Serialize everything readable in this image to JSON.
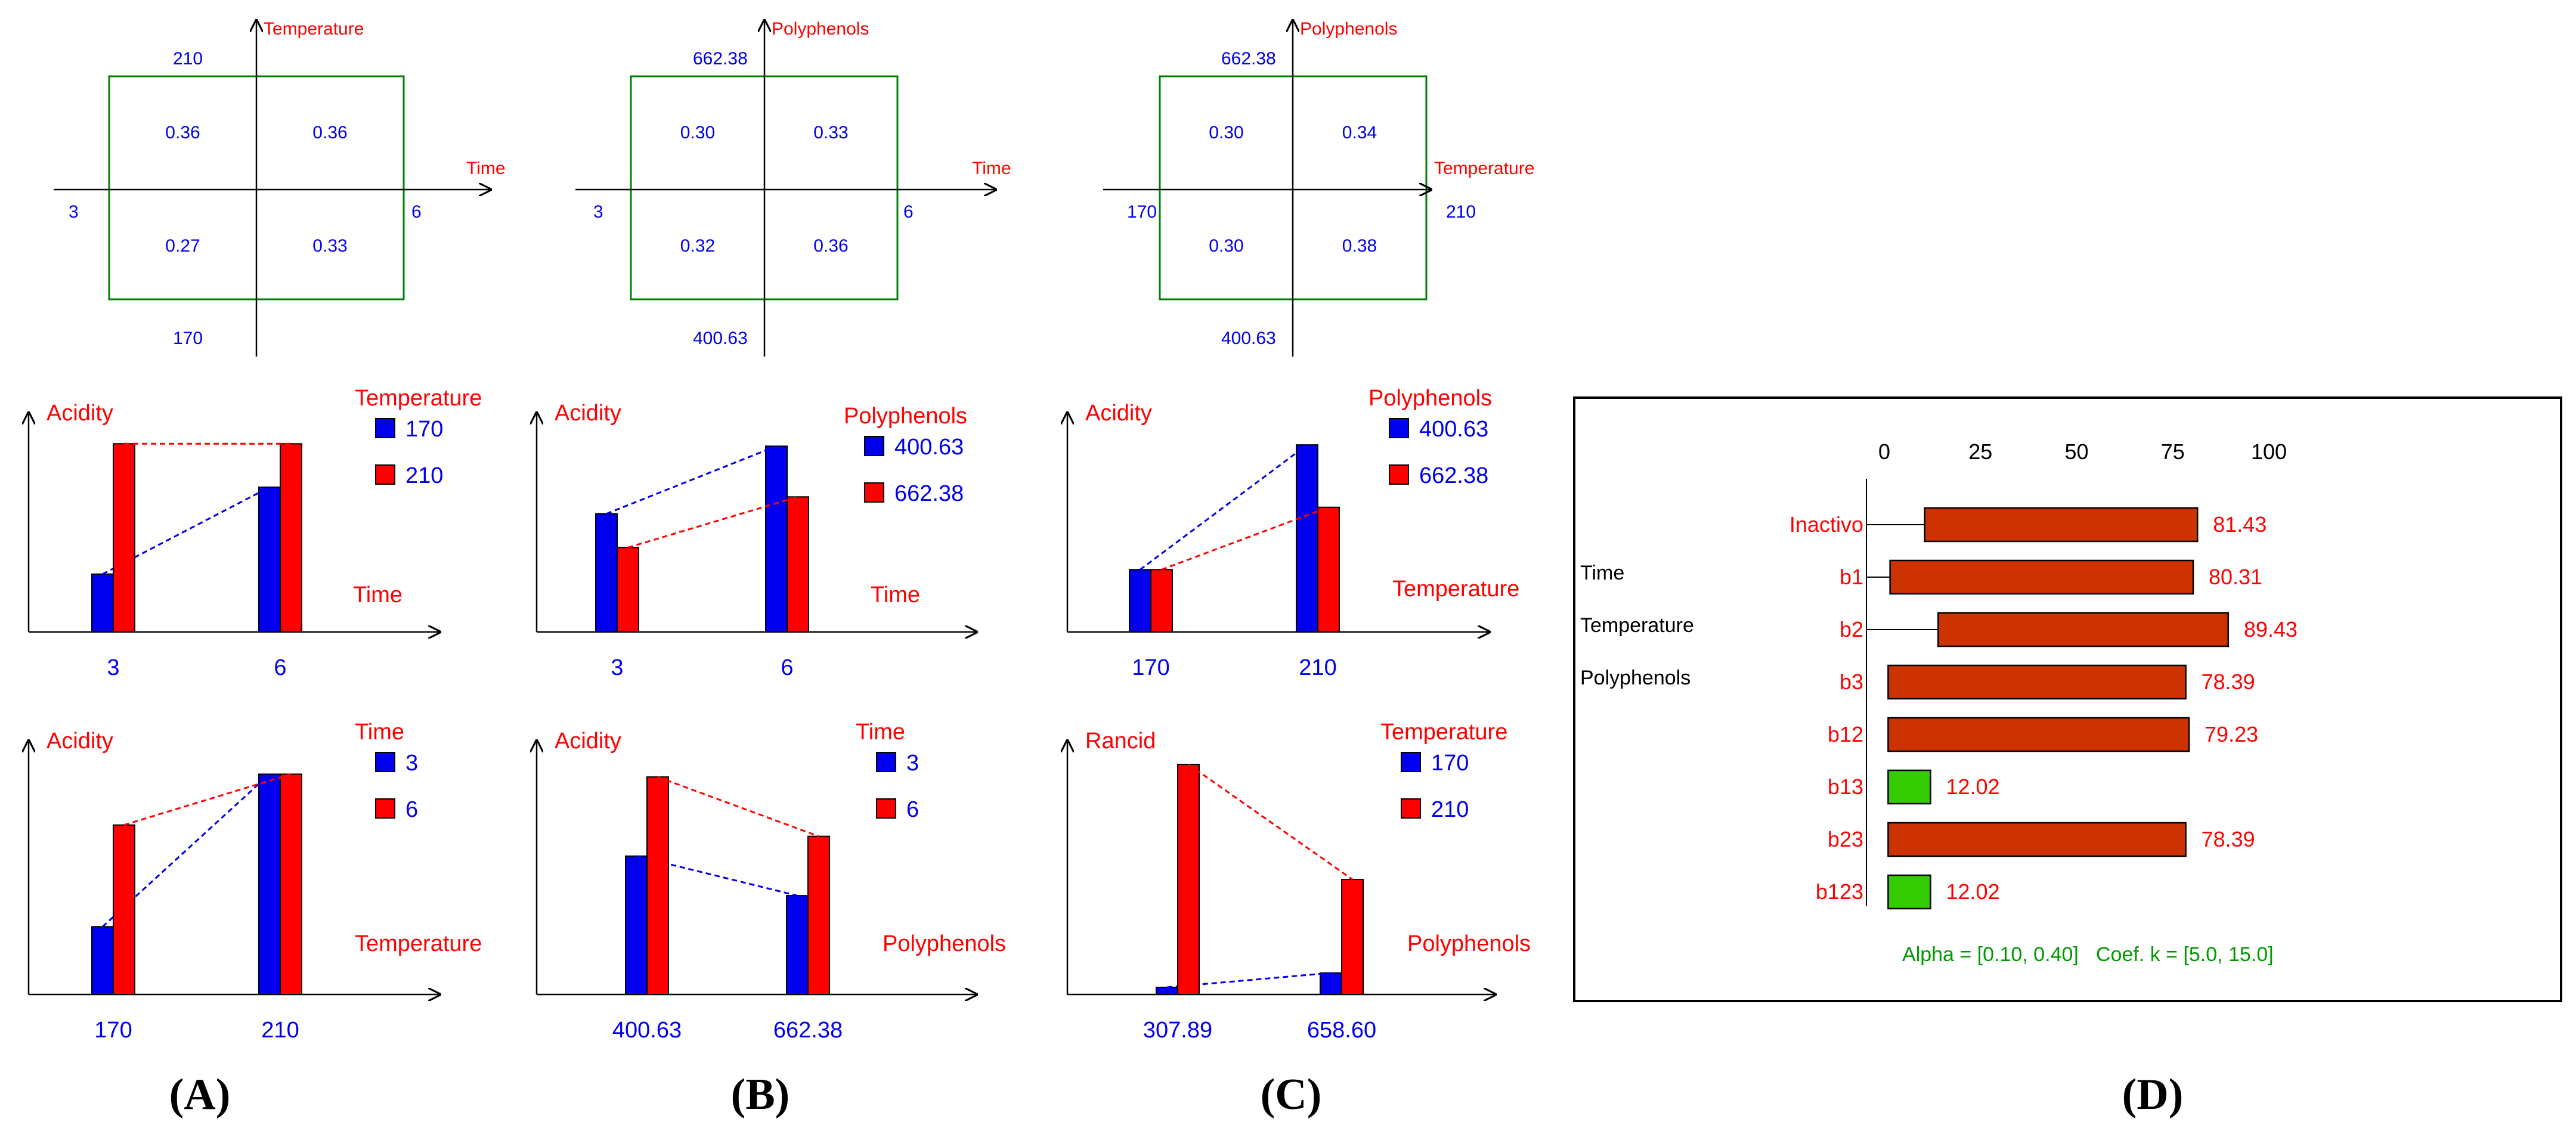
{
  "panel_letters": [
    "(A)",
    "(B)",
    "(C)",
    "(D)"
  ],
  "chart_data": [
    {
      "type": "interaction-square",
      "panel": "A",
      "x_axis_label": "Time",
      "y_axis_label": "Temperature",
      "x_low": "3",
      "x_high": "6",
      "y_low": "170",
      "y_high": "210",
      "values": {
        "low_low": "0.27",
        "high_low": "0.33",
        "low_high": "0.36",
        "high_high": "0.36"
      }
    },
    {
      "type": "interaction-square",
      "panel": "B",
      "x_axis_label": "Time",
      "y_axis_label": "Polyphenols",
      "x_low": "3",
      "x_high": "6",
      "y_low": "400.63",
      "y_high": "662.38",
      "values": {
        "low_low": "0.32",
        "high_low": "0.36",
        "low_high": "0.30",
        "high_high": "0.33"
      }
    },
    {
      "type": "interaction-square",
      "panel": "C",
      "x_axis_label": "Temperature",
      "y_axis_label": "Polyphenols",
      "x_low": "170",
      "x_high": "210",
      "y_low": "400.63",
      "y_high": "662.38",
      "values": {
        "low_low": "0.30",
        "high_low": "0.38",
        "low_high": "0.30",
        "high_high": "0.34"
      }
    },
    {
      "type": "bar",
      "panel": "A1",
      "ylabel": "Acidity",
      "xlabel": "Time",
      "legend_title": "Temperature",
      "categories": [
        "3",
        "6"
      ],
      "series": [
        {
          "name": "170",
          "color": "#0000ee",
          "values": [
            0.27,
            0.33
          ]
        },
        {
          "name": "210",
          "color": "#ff0000",
          "values": [
            0.36,
            0.36
          ]
        }
      ],
      "ylim": [
        0.23,
        0.37
      ]
    },
    {
      "type": "bar",
      "panel": "B1",
      "ylabel": "Acidity",
      "xlabel": "Time",
      "legend_title": "Polyphenols",
      "categories": [
        "3",
        "6"
      ],
      "series": [
        {
          "name": "400.63",
          "color": "#0000ee",
          "values": [
            0.32,
            0.36
          ]
        },
        {
          "name": "662.38",
          "color": "#ff0000",
          "values": [
            0.3,
            0.33
          ]
        }
      ],
      "ylim": [
        0.25,
        0.37
      ]
    },
    {
      "type": "bar",
      "panel": "C1",
      "ylabel": "Acidity",
      "xlabel": "Temperature",
      "legend_title": "Polyphenols",
      "categories": [
        "170",
        "210"
      ],
      "series": [
        {
          "name": "400.63",
          "color": "#0000ee",
          "values": [
            0.3,
            0.38
          ]
        },
        {
          "name": "662.38",
          "color": "#ff0000",
          "values": [
            0.3,
            0.34
          ]
        }
      ],
      "ylim": [
        0.26,
        0.39
      ]
    },
    {
      "type": "bar",
      "panel": "A2",
      "ylabel": "Acidity",
      "xlabel": "Temperature",
      "legend_title": "Time",
      "categories": [
        "170",
        "210"
      ],
      "series": [
        {
          "name": "3",
          "color": "#0000ee",
          "values": [
            0.27,
            0.36
          ]
        },
        {
          "name": "6",
          "color": "#ff0000",
          "values": [
            0.33,
            0.36
          ]
        }
      ],
      "ylim": [
        0.23,
        0.37
      ]
    },
    {
      "type": "bar",
      "panel": "B2",
      "ylabel": "Acidity",
      "xlabel": "Polyphenols",
      "legend_title": "Time",
      "categories": [
        "400.63",
        "662.38"
      ],
      "series": [
        {
          "name": "3",
          "color": "#0000ee",
          "values": [
            0.32,
            0.3
          ]
        },
        {
          "name": "6",
          "color": "#ff0000",
          "values": [
            0.36,
            0.33
          ]
        }
      ],
      "ylim": [
        0.25,
        0.37
      ]
    },
    {
      "type": "bar",
      "panel": "C2",
      "ylabel": "Rancid",
      "xlabel": "Polyphenols",
      "legend_title": "Temperature",
      "categories": [
        "307.89",
        "658.60"
      ],
      "series": [
        {
          "name": "170",
          "color": "#0000ee",
          "values": [
            0.05,
            0.07
          ]
        },
        {
          "name": "210",
          "color": "#ff0000",
          "values": [
            0.36,
            0.2
          ]
        }
      ],
      "ylim": [
        0.04,
        0.37
      ]
    },
    {
      "type": "hbar",
      "panel": "D",
      "ticks": [
        "0",
        "25",
        "50",
        "75",
        "100"
      ],
      "xlim": [
        0,
        100
      ],
      "factor_labels": [
        "Time",
        "Temperature",
        "Polyphenols"
      ],
      "bars": [
        {
          "label": "Inactivo",
          "start": 10.5,
          "value": 81.43,
          "text": "81.43",
          "color": "#cc3300"
        },
        {
          "label": "b1",
          "start": 1.5,
          "value": 80.31,
          "text": "80.31",
          "color": "#cc3300"
        },
        {
          "label": "b2",
          "start": 14.0,
          "value": 89.43,
          "text": "89.43",
          "color": "#cc3300"
        },
        {
          "label": "b3",
          "start": 1.0,
          "value": 78.39,
          "text": "78.39",
          "color": "#cc3300"
        },
        {
          "label": "b12",
          "start": 1.0,
          "value": 79.23,
          "text": "79.23",
          "color": "#cc3300"
        },
        {
          "label": "b13",
          "start": 1.0,
          "value": 12.02,
          "text": "12.02",
          "color": "#33cc00"
        },
        {
          "label": "b23",
          "start": 1.0,
          "value": 78.39,
          "text": "78.39",
          "color": "#cc3300"
        },
        {
          "label": "b123",
          "start": 1.0,
          "value": 12.02,
          "text": "12.02",
          "color": "#33cc00"
        }
      ],
      "footer_alpha": "Alpha = [0.10, 0.40]",
      "footer_coef": "Coef. k = [5.0, 15.0]"
    }
  ]
}
